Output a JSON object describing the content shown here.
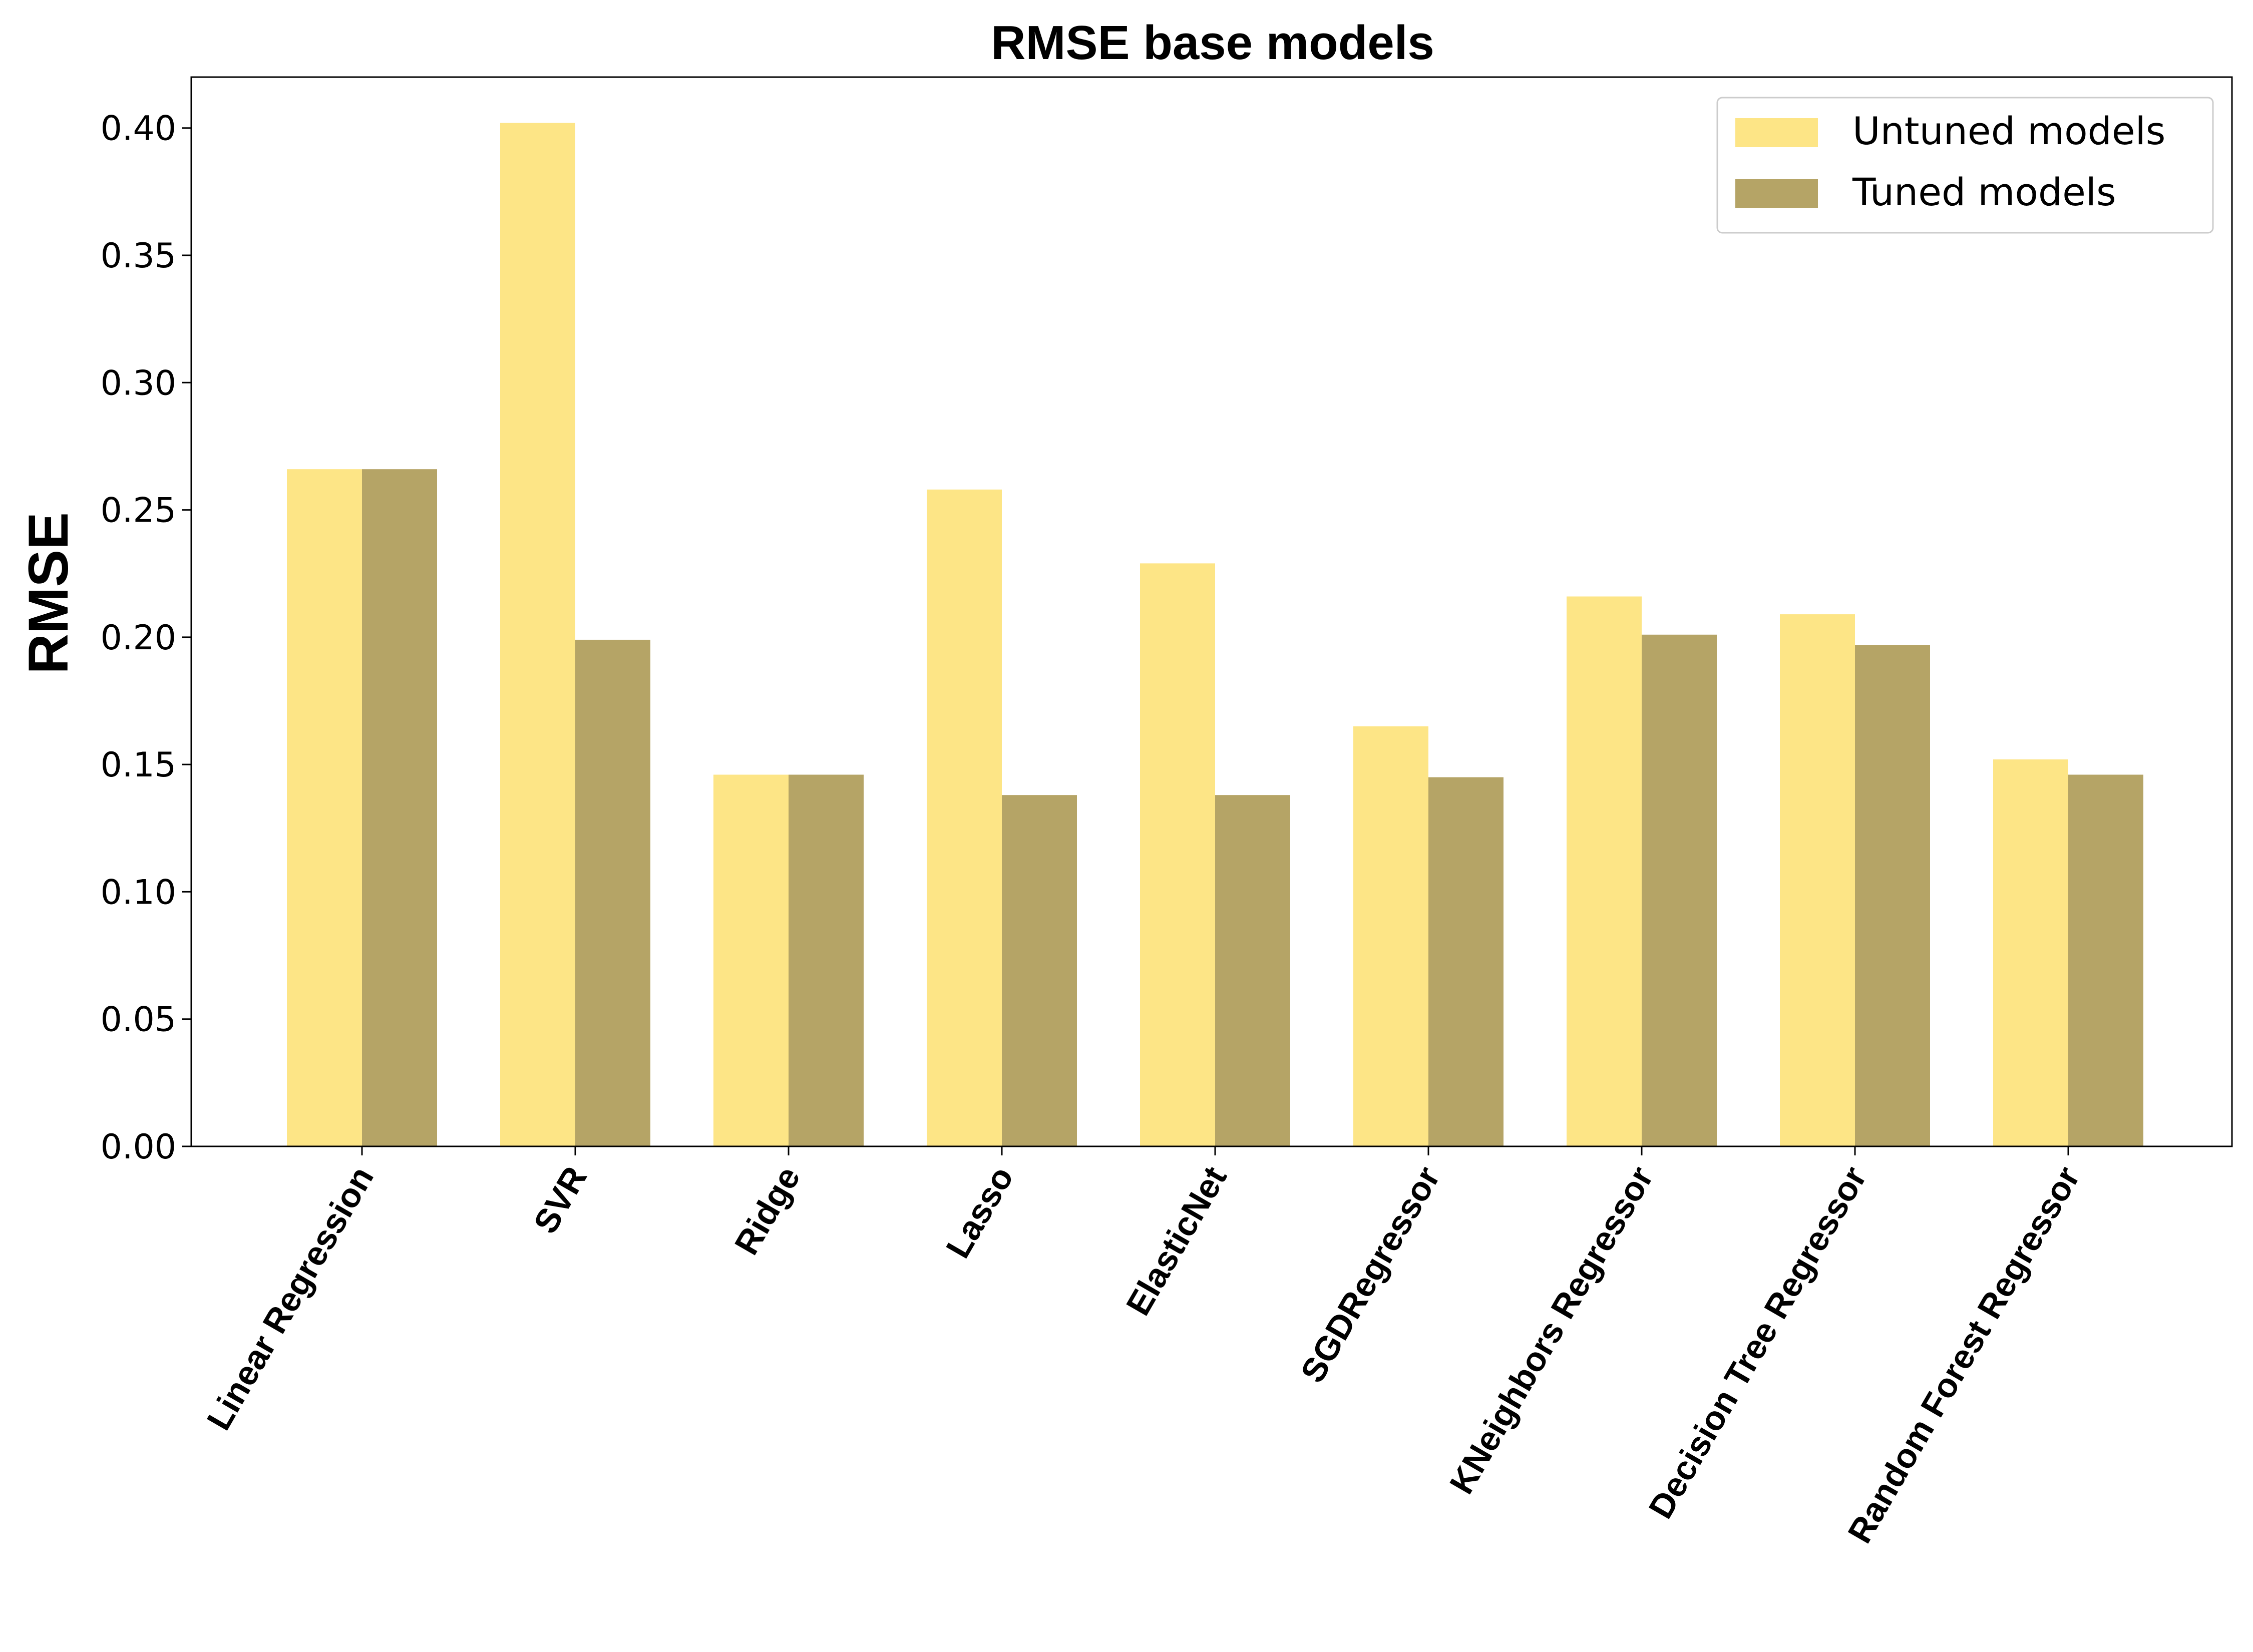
{
  "chart_data": {
    "type": "bar",
    "title": "RMSE base models",
    "xlabel": "",
    "ylabel": "RMSE",
    "ylim": [
      0,
      0.42
    ],
    "yticks": [
      "0.00",
      "0.05",
      "0.10",
      "0.15",
      "0.20",
      "0.25",
      "0.30",
      "0.35",
      "0.40"
    ],
    "grid": false,
    "legend_position": "top-right",
    "categories": [
      "Linear Regression",
      "SVR",
      "Ridge",
      "Lasso",
      "ElasticNet",
      "SGDRegressor",
      "KNeighbors Regressor",
      "Decision Tree Regressor",
      "Random Forest Regressor"
    ],
    "series": [
      {
        "name": "Untuned models",
        "color": "#fde586",
        "values": [
          0.266,
          0.402,
          0.146,
          0.258,
          0.229,
          0.165,
          0.216,
          0.209,
          0.152
        ]
      },
      {
        "name": "Tuned models",
        "color": "#b5a466",
        "values": [
          0.266,
          0.199,
          0.146,
          0.138,
          0.138,
          0.145,
          0.201,
          0.197,
          0.146
        ]
      }
    ]
  }
}
